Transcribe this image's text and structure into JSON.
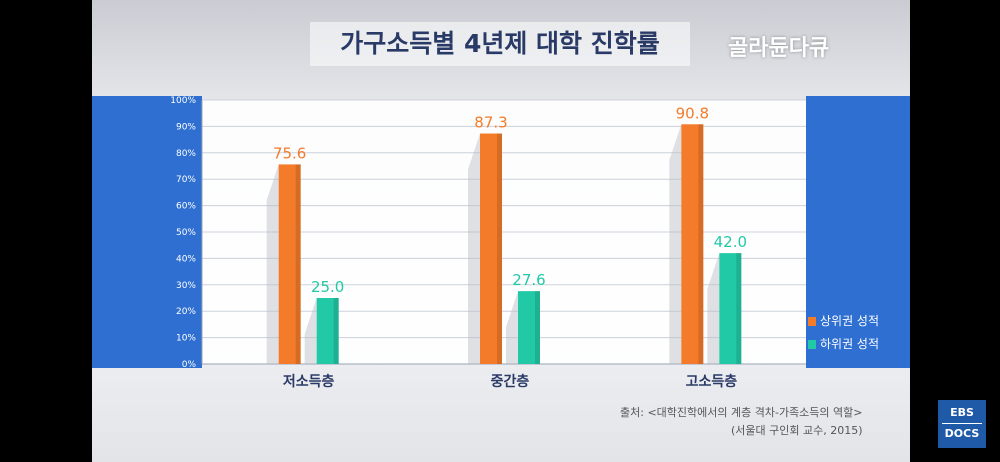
{
  "title": "가구소득별 4년제 대학 진학률",
  "brand": "골라듄다큐",
  "source": {
    "line1": "출처: <대학진학에서의 계층 격차-가족소득의 역할>",
    "line2": "(서울대 구인회 교수, 2015)"
  },
  "logo": {
    "top": "EBS",
    "bottom": "DOCS"
  },
  "colors": {
    "upper": "#f47b2a",
    "lower": "#22c9a6",
    "band": "#2e6fd1",
    "grid": "#ccd1db"
  },
  "chart_data": {
    "type": "bar",
    "title": "가구소득별 4년제 대학 진학률",
    "categories": [
      "저소득층",
      "중간층",
      "고소득층"
    ],
    "series": [
      {
        "name": "상위권 성적",
        "values": [
          75.6,
          87.3,
          90.8
        ],
        "labels": [
          "75.6",
          "87.3",
          "90.8"
        ]
      },
      {
        "name": "하위권 성적",
        "values": [
          25.0,
          27.6,
          42.0
        ],
        "labels": [
          "25.0",
          "27.6",
          "42.0"
        ]
      }
    ],
    "ylim": [
      0,
      100
    ],
    "yticks": [
      "0%",
      "10%",
      "20%",
      "30%",
      "40%",
      "50%",
      "60%",
      "70%",
      "80%",
      "90%",
      "100%"
    ],
    "grid": true,
    "legend": "right"
  }
}
